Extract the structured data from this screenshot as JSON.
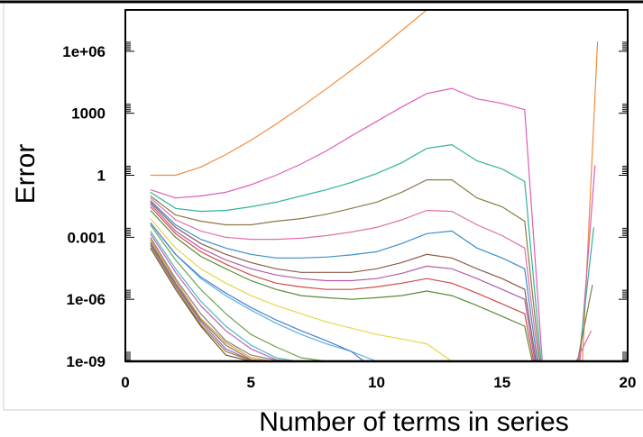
{
  "chart_data": {
    "type": "line",
    "title": "",
    "xlabel": "Number of terms in series",
    "ylabel": "Error",
    "xlim": [
      0,
      20
    ],
    "ylim": [
      1e-09,
      100000000.0
    ],
    "log_y": true,
    "grid": false,
    "x_ticks": [
      "0",
      "5",
      "10",
      "15",
      "20"
    ],
    "y_ticks": [
      "1e-09",
      "1e-06",
      "0.001",
      "1",
      "1000",
      "1e+06"
    ],
    "y_tick_values": [
      1e-09,
      1e-06,
      0.001,
      1,
      1000,
      1000000.0
    ],
    "colors": [
      "#f28b3c",
      "#e05bb6",
      "#2fb39a",
      "#8a7a45",
      "#e070a8",
      "#3a8fc9",
      "#8b5a4a",
      "#b05ca6",
      "#d04a45",
      "#5a8a3a",
      "#5fb0d8",
      "#6fa54a",
      "#e8d54a",
      "#4a7fd0",
      "#50b8b0",
      "#c060c0",
      "#808080",
      "#d8a030",
      "#9a6a5a",
      "#7070c8",
      "#b87030",
      "#606030",
      "#c05060"
    ],
    "series": [
      {
        "x": [
          1,
          2,
          3,
          4,
          5,
          6,
          7,
          8,
          9,
          10,
          11,
          12,
          13,
          14,
          15,
          16
        ],
        "y": [
          1,
          1,
          2.5,
          10,
          50,
          300,
          2000,
          15000,
          120000.0,
          1000000.0,
          10000000.0,
          100000000.0,
          300000000.0,
          200000000.0,
          300000000.0,
          300000000.0
        ]
      },
      {
        "x": [
          1,
          2,
          3,
          4,
          5,
          6,
          7,
          8,
          9,
          10,
          11,
          12,
          13,
          14,
          15,
          15.9,
          16.6
        ],
        "y": [
          0.2,
          0.08,
          0.1,
          0.15,
          0.35,
          1,
          3.5,
          15,
          80,
          400,
          2000,
          9000,
          16000,
          5000,
          3000,
          1500,
          1e-09
        ]
      },
      {
        "x": [
          1,
          2,
          3,
          4,
          5,
          6,
          7,
          8,
          9,
          10,
          11,
          12,
          13,
          14,
          15,
          15.9,
          16.55
        ],
        "y": [
          0.15,
          0.025,
          0.018,
          0.02,
          0.03,
          0.05,
          0.1,
          0.2,
          0.45,
          1.2,
          4,
          20,
          30,
          5,
          2,
          0.5,
          1e-09
        ]
      },
      {
        "x": [
          1,
          2,
          3,
          4,
          5,
          6,
          7,
          8,
          9,
          10,
          11,
          12,
          13,
          14,
          15,
          15.9,
          16.5
        ],
        "y": [
          0.1,
          0.012,
          0.006,
          0.004,
          0.004,
          0.006,
          0.008,
          0.013,
          0.025,
          0.05,
          0.15,
          0.6,
          0.6,
          0.08,
          0.03,
          0.006,
          1e-09
        ]
      },
      {
        "x": [
          1,
          2,
          3,
          4,
          5,
          6,
          7,
          8,
          9,
          10,
          11,
          12,
          13,
          14,
          15,
          15.9,
          16.45
        ],
        "y": [
          0.08,
          0.007,
          0.002,
          0.001,
          0.0008,
          0.0008,
          0.0009,
          0.0012,
          0.0018,
          0.003,
          0.007,
          0.02,
          0.018,
          0.004,
          0.0012,
          0.0003,
          1e-09
        ]
      },
      {
        "x": [
          1,
          2,
          3,
          4,
          5,
          6,
          7,
          8,
          9,
          10,
          11,
          12,
          13,
          14,
          15,
          15.9,
          16.4
        ],
        "y": [
          0.06,
          0.004,
          0.0008,
          0.0003,
          0.00015,
          0.0001,
          0.0001,
          0.00011,
          0.00014,
          0.0002,
          0.0005,
          0.0015,
          0.002,
          0.0003,
          0.0001,
          3e-05,
          1e-09
        ]
      },
      {
        "x": [
          1,
          2,
          3,
          4,
          5,
          6,
          7,
          8,
          9,
          10,
          11,
          12,
          13,
          14,
          15,
          15.9,
          16.35
        ],
        "y": [
          0.05,
          0.003,
          0.0005,
          0.00015,
          6e-05,
          3e-05,
          2e-05,
          2e-05,
          2e-05,
          3e-05,
          6e-05,
          0.00015,
          0.0001,
          3e-05,
          1e-05,
          3e-06,
          1e-09
        ]
      },
      {
        "x": [
          1,
          2,
          3,
          4,
          5,
          6,
          7,
          8,
          9,
          10,
          11,
          12,
          13,
          14,
          15,
          15.9,
          16.3
        ],
        "y": [
          0.04,
          0.002,
          0.0003,
          8e-05,
          3e-05,
          1.5e-05,
          1e-05,
          8e-06,
          8e-06,
          1e-05,
          1.8e-05,
          4e-05,
          3e-05,
          1e-05,
          3e-06,
          1e-06,
          1e-09
        ]
      },
      {
        "x": [
          1,
          2,
          3,
          4,
          5,
          6,
          7,
          8,
          9,
          10,
          11,
          12,
          13,
          14,
          15,
          15.9,
          16.25
        ],
        "y": [
          0.03,
          0.0015,
          0.0002,
          5e-05,
          1.5e-05,
          6e-06,
          4e-06,
          3e-06,
          3e-06,
          4e-06,
          6e-06,
          1e-05,
          6e-06,
          2e-06,
          6e-07,
          2e-07,
          1e-09
        ]
      },
      {
        "x": [
          1,
          2,
          3,
          4,
          5,
          6,
          7,
          8,
          9,
          10,
          11,
          12,
          13,
          14,
          15,
          15.9,
          16.2
        ],
        "y": [
          0.02,
          0.001,
          0.00012,
          3e-05,
          8e-06,
          3e-06,
          1.5e-06,
          1.2e-06,
          1e-06,
          1.2e-06,
          1.5e-06,
          2.5e-06,
          1.5e-06,
          5e-07,
          1.5e-07,
          5e-08,
          1e-09
        ]
      },
      {
        "x": [
          1,
          2,
          3,
          4,
          5,
          6,
          7,
          8,
          9,
          10
        ],
        "y": [
          0.005,
          0.00015,
          1e-05,
          1.5e-06,
          3e-07,
          7e-08,
          2e-08,
          7e-09,
          3e-09,
          1e-09
        ]
      },
      {
        "x": [
          1,
          2,
          3,
          4,
          5,
          6,
          7,
          8
        ],
        "y": [
          0.004,
          8e-05,
          3e-06,
          2e-07,
          2e-08,
          5e-09,
          1.5e-09,
          1e-09
        ]
      },
      {
        "x": [
          1,
          2,
          3,
          4,
          5,
          6,
          7,
          8,
          9,
          10,
          11,
          12,
          13
        ],
        "y": [
          0.008,
          0.0003,
          3e-05,
          6e-06,
          1.5e-06,
          5e-07,
          2e-07,
          8e-08,
          4e-08,
          2e-08,
          1.2e-08,
          7e-09,
          1e-09
        ]
      },
      {
        "x": [
          1,
          2,
          3,
          4,
          5,
          6,
          7,
          8,
          9,
          9.5
        ],
        "y": [
          0.005,
          0.00015,
          1.2e-05,
          2e-06,
          4e-07,
          1e-07,
          3e-08,
          1e-08,
          3e-09,
          1e-09
        ]
      },
      {
        "x": [
          1,
          2,
          3,
          4,
          5,
          6,
          6.8
        ],
        "y": [
          0.002,
          3e-05,
          8e-07,
          5e-08,
          6e-09,
          1.5e-09,
          1e-09
        ]
      },
      {
        "x": [
          1,
          2,
          3,
          4,
          5,
          6,
          6.6
        ],
        "y": [
          0.0015,
          2e-05,
          5e-07,
          3e-08,
          4e-09,
          1.2e-09,
          1e-09
        ]
      },
      {
        "x": [
          1,
          2,
          3,
          4,
          5,
          6.2
        ],
        "y": [
          0.001,
          1e-05,
          2e-07,
          1e-08,
          2e-09,
          1e-09
        ]
      },
      {
        "x": [
          1,
          2,
          3,
          4,
          5,
          5.9
        ],
        "y": [
          0.0008,
          8e-06,
          1.2e-07,
          8e-09,
          1.5e-09,
          1e-09
        ]
      },
      {
        "x": [
          1,
          2,
          3,
          4,
          5,
          5.7
        ],
        "y": [
          0.0006,
          6e-06,
          1e-07,
          6e-09,
          1.2e-09,
          1e-09
        ]
      },
      {
        "x": [
          1,
          2,
          3,
          4,
          5,
          5.5
        ],
        "y": [
          0.0005,
          5e-06,
          8e-08,
          4e-09,
          1.1e-09,
          1e-09
        ]
      },
      {
        "x": [
          1,
          2,
          3,
          4,
          5,
          5.3
        ],
        "y": [
          0.0004,
          4e-06,
          6e-08,
          3e-09,
          1.1e-09,
          1e-09
        ]
      },
      {
        "x": [
          1,
          2,
          3,
          4,
          5
        ],
        "y": [
          0.0003,
          3e-06,
          5e-08,
          2e-09,
          1e-09
        ]
      },
      {
        "x": [
          0,
          1,
          2,
          3,
          4,
          5,
          6,
          7,
          8,
          9,
          10,
          11,
          12,
          13,
          14,
          15,
          16,
          17,
          18,
          19,
          20
        ],
        "y": [
          1e-09,
          1e-09,
          1e-09,
          1e-09,
          1e-09,
          1e-09,
          1e-09,
          1e-09,
          1e-09,
          1e-09,
          1e-09,
          1e-09,
          1e-09,
          1e-09,
          1e-09,
          1e-09,
          1e-09,
          1e-09,
          1e-09,
          1e-09,
          1e-09
        ]
      },
      {
        "x": [
          18.2,
          18.8
        ],
        "y": [
          1e-09,
          3000000.0
        ]
      },
      {
        "x": [
          18.1,
          18.7
        ],
        "y": [
          1e-09,
          3
        ]
      },
      {
        "x": [
          18.05,
          18.65
        ],
        "y": [
          1e-09,
          0.003
        ]
      },
      {
        "x": [
          18.0,
          18.6
        ],
        "y": [
          1e-09,
          5e-06
        ]
      },
      {
        "x": [
          17.95,
          18.55
        ],
        "y": [
          1e-09,
          3e-08
        ]
      }
    ]
  }
}
